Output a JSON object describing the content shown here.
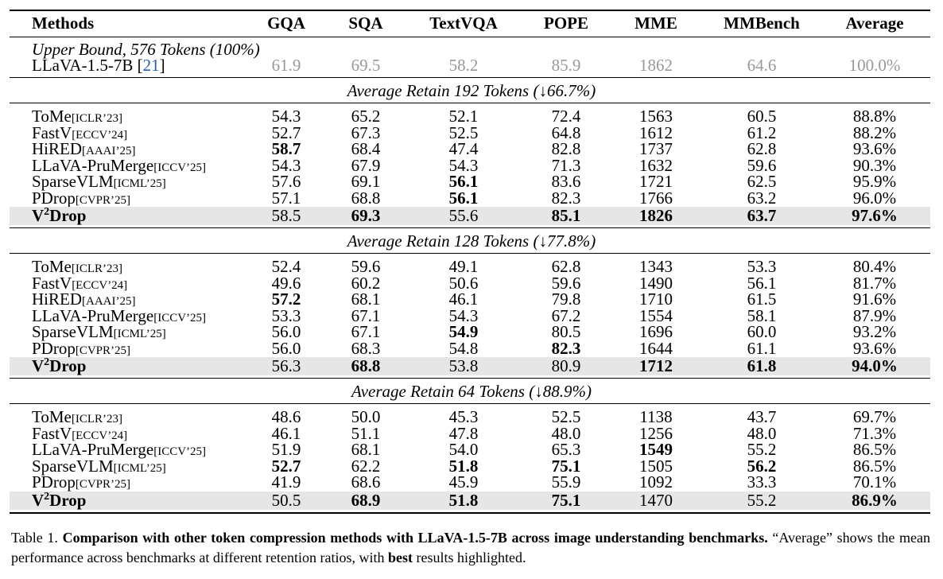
{
  "table": {
    "columns": [
      "Methods",
      "GQA",
      "SQA",
      "TextVQA",
      "POPE",
      "MME",
      "MMBench",
      "Average"
    ],
    "upper_bound": {
      "label": "Upper Bound, 576 Tokens (100%)",
      "method": "LLaVA-1.5-7B",
      "ref": "21",
      "cells": [
        "61.9",
        "69.5",
        "58.2",
        "85.9",
        "1862",
        "64.6",
        "100.0%"
      ]
    },
    "sections": [
      {
        "title": "Average Retain 192 Tokens (↓66.7%)",
        "rows": [
          {
            "method": "ToMe",
            "venue": "[ICLR’23]",
            "cells": [
              "54.3",
              "65.2",
              "52.1",
              "72.4",
              "1563",
              "60.5",
              "88.8%"
            ],
            "bold": []
          },
          {
            "method": "FastV",
            "venue": "[ECCV’24]",
            "cells": [
              "52.7",
              "67.3",
              "52.5",
              "64.8",
              "1612",
              "61.2",
              "88.2%"
            ],
            "bold": []
          },
          {
            "method": "HiRED",
            "venue": "[AAAI’25]",
            "cells": [
              "58.7",
              "68.4",
              "47.4",
              "82.8",
              "1737",
              "62.8",
              "93.6%"
            ],
            "bold": [
              0
            ]
          },
          {
            "method": "LLaVA-PruMerge",
            "venue": "[ICCV’25]",
            "cells": [
              "54.3",
              "67.9",
              "54.3",
              "71.3",
              "1632",
              "59.6",
              "90.3%"
            ],
            "bold": []
          },
          {
            "method": "SparseVLM",
            "venue": "[ICML’25]",
            "cells": [
              "57.6",
              "69.1",
              "56.1",
              "83.6",
              "1721",
              "62.5",
              "95.9%"
            ],
            "bold": [
              2
            ]
          },
          {
            "method": "PDrop",
            "venue": "[CVPR’25]",
            "cells": [
              "57.1",
              "68.8",
              "56.1",
              "82.3",
              "1766",
              "63.2",
              "96.0%"
            ],
            "bold": [
              2
            ]
          },
          {
            "method": "V",
            "sup": "2",
            "suffix": "Drop",
            "highlight": true,
            "cells": [
              "58.5",
              "69.3",
              "55.6",
              "85.1",
              "1826",
              "63.7",
              "97.6%"
            ],
            "bold": [
              1,
              3,
              4,
              5,
              6
            ]
          }
        ]
      },
      {
        "title": "Average Retain 128 Tokens (↓77.8%)",
        "rows": [
          {
            "method": "ToMe",
            "venue": "[ICLR’23]",
            "cells": [
              "52.4",
              "59.6",
              "49.1",
              "62.8",
              "1343",
              "53.3",
              "80.4%"
            ],
            "bold": []
          },
          {
            "method": "FastV",
            "venue": "[ECCV’24]",
            "cells": [
              "49.6",
              "60.2",
              "50.6",
              "59.6",
              "1490",
              "56.1",
              "81.7%"
            ],
            "bold": []
          },
          {
            "method": "HiRED",
            "venue": "[AAAI’25]",
            "cells": [
              "57.2",
              "68.1",
              "46.1",
              "79.8",
              "1710",
              "61.5",
              "91.6%"
            ],
            "bold": [
              0
            ]
          },
          {
            "method": "LLaVA-PruMerge",
            "venue": "[ICCV’25]",
            "cells": [
              "53.3",
              "67.1",
              "54.3",
              "67.2",
              "1554",
              "58.1",
              "87.9%"
            ],
            "bold": []
          },
          {
            "method": "SparseVLM",
            "venue": "[ICML’25]",
            "cells": [
              "56.0",
              "67.1",
              "54.9",
              "80.5",
              "1696",
              "60.0",
              "93.2%"
            ],
            "bold": [
              2
            ]
          },
          {
            "method": "PDrop",
            "venue": "[CVPR’25]",
            "cells": [
              "56.0",
              "68.3",
              "54.8",
              "82.3",
              "1644",
              "61.1",
              "93.6%"
            ],
            "bold": [
              3
            ]
          },
          {
            "method": "V",
            "sup": "2",
            "suffix": "Drop",
            "highlight": true,
            "cells": [
              "56.3",
              "68.8",
              "53.8",
              "80.9",
              "1712",
              "61.8",
              "94.0%"
            ],
            "bold": [
              1,
              4,
              5,
              6
            ]
          }
        ]
      },
      {
        "title": "Average Retain 64 Tokens (↓88.9%)",
        "rows": [
          {
            "method": "ToMe",
            "venue": "[ICLR’23]",
            "cells": [
              "48.6",
              "50.0",
              "45.3",
              "52.5",
              "1138",
              "43.7",
              "69.7%"
            ],
            "bold": []
          },
          {
            "method": "FastV",
            "venue": "[ECCV’24]",
            "cells": [
              "46.1",
              "51.1",
              "47.8",
              "48.0",
              "1256",
              "48.0",
              "71.3%"
            ],
            "bold": []
          },
          {
            "method": "LLaVA-PruMerge",
            "venue": "[ICCV’25]",
            "cells": [
              "51.9",
              "68.1",
              "54.0",
              "65.3",
              "1549",
              "55.2",
              "86.5%"
            ],
            "bold": [
              4
            ]
          },
          {
            "method": "SparseVLM",
            "venue": "[ICML’25]",
            "cells": [
              "52.7",
              "62.2",
              "51.8",
              "75.1",
              "1505",
              "56.2",
              "86.5%"
            ],
            "bold": [
              0,
              2,
              3,
              5
            ]
          },
          {
            "method": "PDrop",
            "venue": "[CVPR’25]",
            "cells": [
              "41.9",
              "68.6",
              "45.9",
              "55.9",
              "1092",
              "33.3",
              "70.1%"
            ],
            "bold": []
          },
          {
            "method": "V",
            "sup": "2",
            "suffix": "Drop",
            "highlight": true,
            "cells": [
              "50.5",
              "68.9",
              "51.8",
              "75.1",
              "1470",
              "55.2",
              "86.9%"
            ],
            "bold": [
              1,
              2,
              3,
              6
            ]
          }
        ]
      }
    ]
  },
  "caption": {
    "label": "Table 1.",
    "bold": "Comparison with other token compression methods with LLaVA-1.5-7B across image understanding benchmarks.",
    "text": "“Average” shows the mean performance across benchmarks at different retention ratios, with",
    "best": "best",
    "tail": "results highlighted."
  }
}
